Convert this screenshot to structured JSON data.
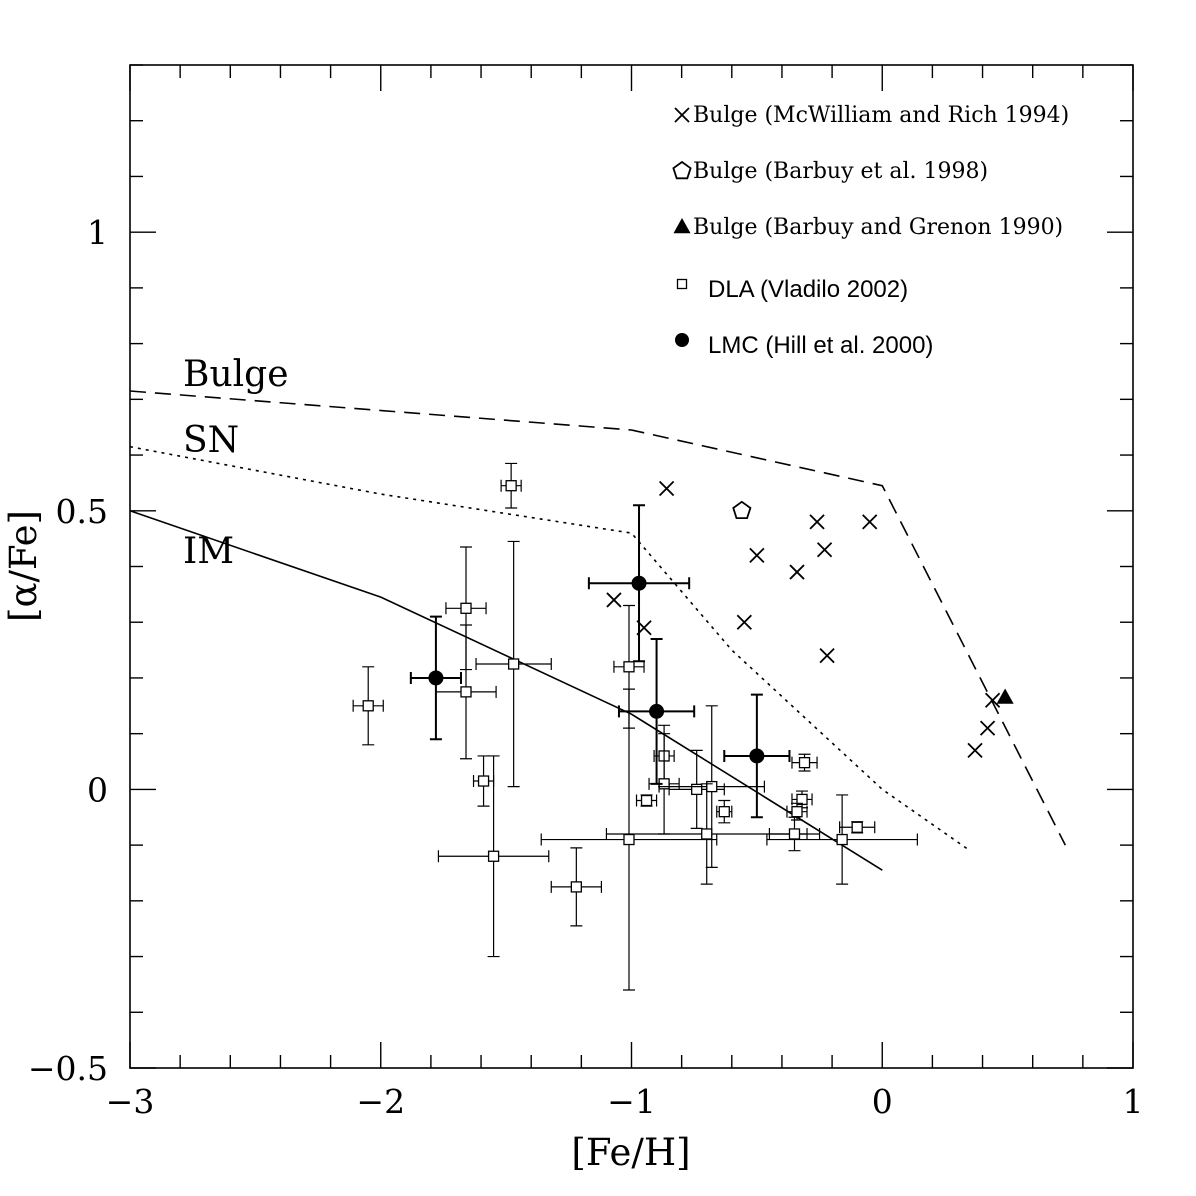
{
  "chart_data": {
    "type": "scatter",
    "xlabel": "[Fe/H]",
    "ylabel": "[α/Fe]",
    "xlim": [
      -3,
      1
    ],
    "ylim": [
      -0.5,
      1.3
    ],
    "x_ticks": [
      -3,
      -2,
      -1,
      0,
      1
    ],
    "x_tick_labels": [
      "−3",
      "−2",
      "−1",
      "0",
      "1"
    ],
    "y_ticks": [
      -0.5,
      0,
      0.5,
      1
    ],
    "y_tick_labels": [
      "−0.5",
      "0",
      "0.5",
      "1"
    ],
    "grid": false,
    "legend_position": "top-right",
    "legend": [
      {
        "marker": "cross",
        "label": "Bulge (McWilliam and Rich 1994)"
      },
      {
        "marker": "pentagon",
        "label": "Bulge (Barbuy et al. 1998)"
      },
      {
        "marker": "triangle",
        "label": "Bulge (Barbuy and Grenon 1990)"
      },
      {
        "marker": "open-square",
        "label": "DLA (Vladilo 2002)"
      },
      {
        "marker": "filled-circle",
        "label": "LMC (Hill et al. 2000)"
      }
    ],
    "model_curves": [
      {
        "label": "Bulge",
        "style": "dashed",
        "points": [
          [
            -3,
            0.715
          ],
          [
            -1,
            0.645
          ],
          [
            0,
            0.545
          ],
          [
            0.73,
            -0.1
          ]
        ]
      },
      {
        "label": "SN",
        "style": "dotted",
        "points": [
          [
            -3,
            0.615
          ],
          [
            -2,
            0.53
          ],
          [
            -1,
            0.46
          ],
          [
            -0.6,
            0.25
          ],
          [
            0,
            0.0
          ],
          [
            0.35,
            -0.11
          ]
        ]
      },
      {
        "label": "IM",
        "style": "solid",
        "points": [
          [
            -3,
            0.5
          ],
          [
            -2,
            0.345
          ],
          [
            -1,
            0.135
          ],
          [
            0,
            -0.145
          ]
        ]
      }
    ],
    "series": [
      {
        "marker": "cross",
        "points": [
          [
            -0.86,
            0.54
          ],
          [
            -1.07,
            0.34
          ],
          [
            -0.95,
            0.29
          ],
          [
            -0.5,
            0.42
          ],
          [
            -0.55,
            0.3
          ],
          [
            -0.26,
            0.48
          ],
          [
            -0.23,
            0.43
          ],
          [
            -0.34,
            0.39
          ],
          [
            -0.22,
            0.24
          ],
          [
            -0.05,
            0.48
          ],
          [
            0.37,
            0.07
          ],
          [
            0.42,
            0.11
          ],
          [
            0.44,
            0.16
          ]
        ]
      },
      {
        "marker": "pentagon",
        "points": [
          [
            -0.56,
            0.5
          ]
        ]
      },
      {
        "marker": "triangle",
        "points": [
          [
            0.49,
            0.165
          ]
        ]
      },
      {
        "marker": "open-square",
        "points": [
          {
            "x": -1.48,
            "y": 0.545,
            "xerr": 0.04,
            "yerr": 0.04
          },
          {
            "x": -1.66,
            "y": 0.325,
            "xerr": 0.08,
            "yerr": 0.11
          },
          {
            "x": -1.47,
            "y": 0.225,
            "xerr": 0.15,
            "yerr": 0.22
          },
          {
            "x": -1.66,
            "y": 0.175,
            "xerr": 0.12,
            "yerr": 0.12
          },
          {
            "x": -2.05,
            "y": 0.15,
            "xerr": 0.06,
            "yerr": 0.07
          },
          {
            "x": -1.01,
            "y": 0.22,
            "xerr": 0.06,
            "yerr": 0.11
          },
          {
            "x": -1.59,
            "y": 0.015,
            "xerr": 0.04,
            "yerr": 0.045
          },
          {
            "x": -1.55,
            "y": -0.12,
            "xerr": 0.22,
            "yerr": 0.18
          },
          {
            "x": -1.22,
            "y": -0.175,
            "xerr": 0.1,
            "yerr": 0.07
          },
          {
            "x": -1.01,
            "y": -0.09,
            "xerr": 0.35,
            "yerr": 0.27
          },
          {
            "x": -0.87,
            "y": 0.06,
            "xerr": 0.04,
            "yerr": 0.055
          },
          {
            "x": -0.87,
            "y": 0.01,
            "xerr": 0.06,
            "yerr": 0.09
          },
          {
            "x": -0.94,
            "y": -0.02,
            "xerr": 0.04,
            "yerr": 0.01
          },
          {
            "x": -0.74,
            "y": 0.0,
            "xerr": 0.11,
            "yerr": 0.07
          },
          {
            "x": -0.68,
            "y": 0.005,
            "xerr": 0.21,
            "yerr": 0.145
          },
          {
            "x": -0.7,
            "y": -0.08,
            "xerr": 0.4,
            "yerr": 0.09
          },
          {
            "x": -0.63,
            "y": -0.04,
            "xerr": 0.03,
            "yerr": 0.02
          },
          {
            "x": -0.31,
            "y": 0.048,
            "xerr": 0.05,
            "yerr": 0.015
          },
          {
            "x": -0.32,
            "y": -0.018,
            "xerr": 0.04,
            "yerr": 0.015
          },
          {
            "x": -0.34,
            "y": -0.04,
            "xerr": 0.04,
            "yerr": 0.015
          },
          {
            "x": -0.35,
            "y": -0.08,
            "xerr": 0.1,
            "yerr": 0.03
          },
          {
            "x": -0.16,
            "y": -0.09,
            "xerr": 0.3,
            "yerr": 0.08
          },
          {
            "x": -0.1,
            "y": -0.068,
            "xerr": 0.07,
            "yerr": 0.01
          }
        ]
      },
      {
        "marker": "filled-circle",
        "points": [
          {
            "x": -1.78,
            "y": 0.2,
            "xerr": 0.1,
            "yerr": 0.11
          },
          {
            "x": -0.97,
            "y": 0.37,
            "xerr": 0.2,
            "yerr": 0.14
          },
          {
            "x": -0.9,
            "y": 0.14,
            "xerr": 0.15,
            "yerr": 0.13
          },
          {
            "x": -0.5,
            "y": 0.06,
            "xerr": 0.13,
            "yerr": 0.11
          }
        ]
      }
    ]
  }
}
